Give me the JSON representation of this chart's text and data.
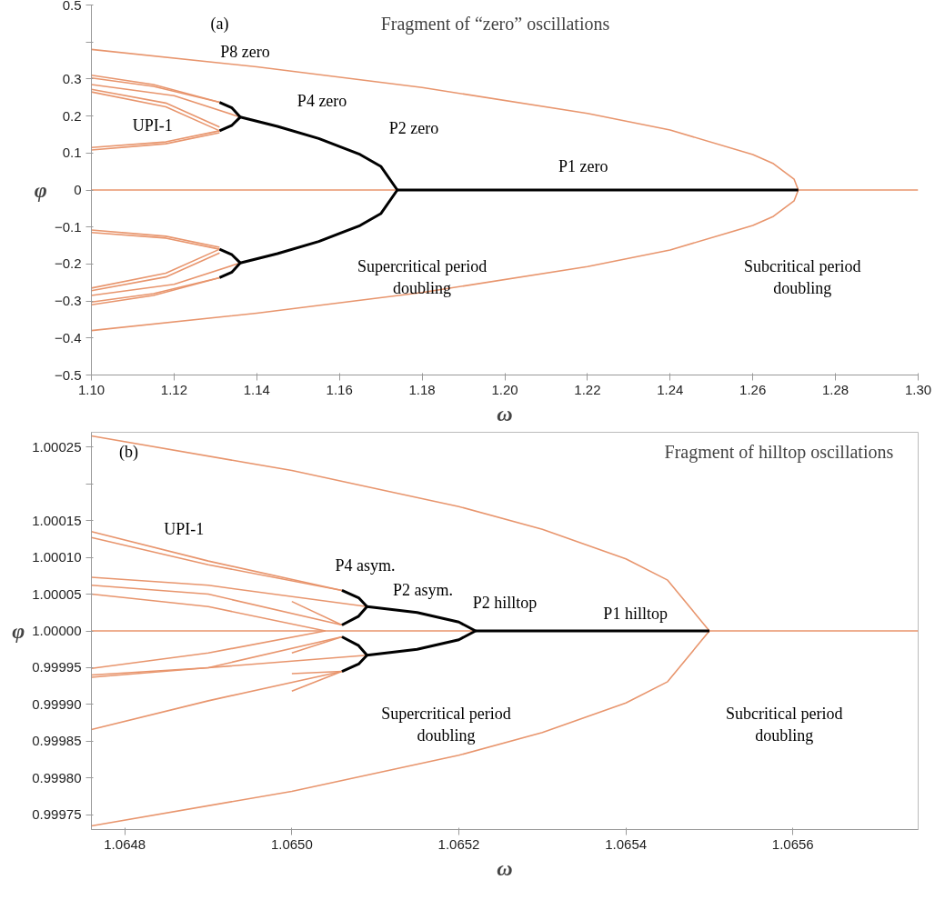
{
  "chart_data": [
    {
      "type": "line",
      "title": "Fragment of “zero” oscillations",
      "xlabel": "ω",
      "ylabel": "φ",
      "xlim": [
        1.1,
        1.3
      ],
      "ylim": [
        -0.5,
        0.5
      ],
      "xticks": [
        {
          "value": 1.1,
          "label": "1.10"
        },
        {
          "value": 1.12,
          "label": "1.12"
        },
        {
          "value": 1.14,
          "label": "1.14"
        },
        {
          "value": 1.16,
          "label": "1.16"
        },
        {
          "value": 1.18,
          "label": "1.18"
        },
        {
          "value": 1.2,
          "label": "1.20"
        },
        {
          "value": 1.22,
          "label": "1.22"
        },
        {
          "value": 1.24,
          "label": "1.24"
        },
        {
          "value": 1.26,
          "label": "1.26"
        },
        {
          "value": 1.28,
          "label": "1.28"
        },
        {
          "value": 1.3,
          "label": "1.30"
        }
      ],
      "yticks": [
        -0.5,
        -0.4,
        -0.3,
        -0.2,
        -0.1,
        0,
        0.1,
        0.2,
        0.3,
        {
          "value": 0.4,
          "label": null
        },
        0.5
      ],
      "annotations": [
        "(a)",
        "P8 zero",
        "P4 zero",
        "P2 zero",
        "P1 zero",
        "UPI-1",
        "Supercritical period doubling",
        "Subcritical period doubling"
      ],
      "series": [
        {
          "type": "line",
          "color": "#e8956d",
          "x": [
            1.1,
            1.3
          ],
          "values": [
            0,
            0
          ]
        },
        {
          "color": "#e8956d",
          "x": [
            1.1,
            1.14,
            1.18,
            1.22,
            1.24,
            1.26,
            1.265,
            1.27,
            1.271,
            1.27,
            1.265,
            1.26,
            1.24,
            1.22,
            1.18,
            1.14,
            1.1
          ],
          "values": [
            0.38,
            0.333,
            0.277,
            0.207,
            0.162,
            0.096,
            0.071,
            0.029,
            0,
            -0.029,
            -0.071,
            -0.096,
            -0.162,
            -0.207,
            -0.277,
            -0.333,
            -0.38
          ]
        },
        {
          "type": "line",
          "color": "#e8956d",
          "x": [
            1.1,
            1.115,
            1.131
          ],
          "values": [
            0.31,
            0.285,
            0.237
          ]
        },
        {
          "type": "line",
          "color": "#e8956d",
          "x": [
            1.1,
            1.115,
            1.131
          ],
          "values": [
            0.303,
            0.28,
            0.237
          ]
        },
        {
          "type": "line",
          "color": "#e8956d",
          "x": [
            1.1,
            1.12,
            1.136
          ],
          "values": [
            0.285,
            0.255,
            0.197
          ]
        },
        {
          "type": "line",
          "color": "#e8956d",
          "x": [
            1.1,
            1.118,
            1.131
          ],
          "values": [
            0.272,
            0.235,
            0.17
          ]
        },
        {
          "type": "line",
          "color": "#e8956d",
          "x": [
            1.1,
            1.118,
            1.131
          ],
          "values": [
            0.265,
            0.225,
            0.16
          ]
        },
        {
          "type": "line",
          "color": "#e8956d",
          "x": [
            1.1,
            1.118,
            1.131
          ],
          "values": [
            0.115,
            0.13,
            0.16
          ]
        },
        {
          "type": "line",
          "color": "#e8956d",
          "x": [
            1.1,
            1.118,
            1.131
          ],
          "values": [
            0.108,
            0.125,
            0.155
          ]
        },
        {
          "type": "line",
          "color": "#e8956d",
          "x": [
            1.1,
            1.115,
            1.131
          ],
          "values": [
            -0.31,
            -0.285,
            -0.237
          ]
        },
        {
          "type": "line",
          "color": "#e8956d",
          "x": [
            1.1,
            1.115,
            1.131
          ],
          "values": [
            -0.303,
            -0.28,
            -0.237
          ]
        },
        {
          "type": "line",
          "color": "#e8956d",
          "x": [
            1.1,
            1.12,
            1.136
          ],
          "values": [
            -0.285,
            -0.255,
            -0.197
          ]
        },
        {
          "type": "line",
          "color": "#e8956d",
          "x": [
            1.1,
            1.118,
            1.131
          ],
          "values": [
            -0.272,
            -0.235,
            -0.17
          ]
        },
        {
          "type": "line",
          "color": "#e8956d",
          "x": [
            1.1,
            1.118,
            1.131
          ],
          "values": [
            -0.265,
            -0.225,
            -0.16
          ]
        },
        {
          "type": "line",
          "color": "#e8956d",
          "x": [
            1.1,
            1.118,
            1.131
          ],
          "values": [
            -0.115,
            -0.13,
            -0.16
          ]
        },
        {
          "type": "line",
          "color": "#e8956d",
          "x": [
            1.1,
            1.118,
            1.131
          ],
          "values": [
            -0.108,
            -0.125,
            -0.155
          ]
        },
        {
          "type": "line",
          "color": "#000000",
          "x": [
            1.174,
            1.271
          ],
          "values": [
            0,
            0
          ]
        },
        {
          "type": "line",
          "color": "#000000",
          "x": [
            1.136,
            1.145,
            1.155,
            1.165,
            1.17,
            1.174,
            1.17,
            1.165,
            1.155,
            1.145,
            1.136
          ],
          "values": [
            0.197,
            0.172,
            0.139,
            0.096,
            0.064,
            0,
            -0.064,
            -0.096,
            -0.139,
            -0.172,
            -0.197
          ]
        },
        {
          "type": "line",
          "color": "#000000",
          "x": [
            1.131,
            1.134,
            1.136,
            1.134,
            1.131
          ],
          "values": [
            0.237,
            0.222,
            0.197,
            0.175,
            0.16
          ]
        },
        {
          "type": "line",
          "color": "#000000",
          "x": [
            1.131,
            1.134,
            1.136,
            1.134,
            1.131
          ],
          "values": [
            -0.237,
            -0.222,
            -0.197,
            -0.175,
            -0.16
          ]
        }
      ]
    },
    {
      "type": "line",
      "title": "Fragment of hilltop oscillations",
      "xlabel": "ω",
      "ylabel": "φ",
      "xlim": [
        1.06476,
        1.06575
      ],
      "ylim": [
        0.99973,
        1.00027
      ],
      "xticks": [
        {
          "value": 1.0648,
          "label": "1.0648"
        },
        {
          "value": 1.065,
          "label": "1.0650"
        },
        {
          "value": 1.0652,
          "label": "1.0652"
        },
        {
          "value": 1.0654,
          "label": "1.0654"
        },
        {
          "value": 1.0656,
          "label": "1.0656"
        }
      ],
      "yticks": [
        {
          "value": 0.99975,
          "label": "0.99975"
        },
        {
          "value": 0.9998,
          "label": "0.99980"
        },
        {
          "value": 0.99985,
          "label": "0.99985"
        },
        {
          "value": 0.9999,
          "label": "0.99990"
        },
        {
          "value": 0.99995,
          "label": "0.99995"
        },
        {
          "value": 1.0,
          "label": "1.00000"
        },
        {
          "value": 1.00005,
          "label": "1.00005"
        },
        {
          "value": 1.0001,
          "label": "1.00010"
        },
        {
          "value": 1.00015,
          "label": "1.00015"
        },
        {
          "value": 1.0002,
          "label": null
        },
        {
          "value": 1.00025,
          "label": "1.00025"
        }
      ],
      "annotations": [
        "(b)",
        "UPI-1",
        "P4 asym.",
        "P2 asym.",
        "P2 hilltop",
        "P1 hilltop",
        "Supercritical period doubling",
        "Subcritical period doubling"
      ],
      "series": [
        {
          "type": "line",
          "color": "#e8956d",
          "x": [
            1.06476,
            1.06575
          ],
          "values": [
            1,
            1
          ]
        },
        {
          "color": "#e8956d",
          "x": [
            1.06476,
            1.065,
            1.0652,
            1.0653,
            1.0654,
            1.06545,
            1.0655,
            1.06545,
            1.0654,
            1.0653,
            1.0652,
            1.065,
            1.06476
          ],
          "values": [
            1.000265,
            1.000218,
            1.000169,
            1.000138,
            1.000098,
            1.000069,
            1,
            0.999931,
            0.999902,
            0.999862,
            0.999831,
            0.999782,
            0.999735
          ]
        },
        {
          "type": "line",
          "color": "#e8956d",
          "x": [
            1.06476,
            1.0649,
            1.06506
          ],
          "values": [
            1.000135,
            1.000095,
            1.000055
          ]
        },
        {
          "type": "line",
          "color": "#e8956d",
          "x": [
            1.06476,
            1.0649,
            1.06506
          ],
          "values": [
            1.000127,
            1.00009,
            1.000055
          ]
        },
        {
          "type": "line",
          "color": "#e8956d",
          "x": [
            1.06476,
            1.0649,
            1.06509
          ],
          "values": [
            1.000073,
            1.000062,
            1.000033
          ]
        },
        {
          "type": "line",
          "color": "#e8956d",
          "x": [
            1.06476,
            1.0649,
            1.06506
          ],
          "values": [
            1.000062,
            1.00005,
            1.000008
          ]
        },
        {
          "type": "line",
          "color": "#e8956d",
          "x": [
            1.06476,
            1.0649,
            1.06504
          ],
          "values": [
            1.00005,
            1.000033,
            1.0
          ]
        },
        {
          "type": "line",
          "color": "#e8956d",
          "x": [
            1.06476,
            1.0649,
            1.06504
          ],
          "values": [
            0.999949,
            0.99997,
            1.0
          ]
        },
        {
          "type": "line",
          "color": "#e8956d",
          "x": [
            1.06476,
            1.0649,
            1.06509
          ],
          "values": [
            0.99994,
            0.99995,
            0.999967
          ]
        },
        {
          "type": "line",
          "color": "#e8956d",
          "x": [
            1.06476,
            1.0649,
            1.06506
          ],
          "values": [
            0.999937,
            0.99995,
            0.999992
          ]
        },
        {
          "type": "line",
          "color": "#e8956d",
          "x": [
            1.06476,
            1.0649,
            1.06506
          ],
          "values": [
            0.999866,
            0.999905,
            0.999945
          ]
        },
        {
          "type": "line",
          "color": "#e8956d",
          "x": [
            1.065,
            1.06506
          ],
          "values": [
            1.00004,
            1.000008
          ]
        },
        {
          "type": "line",
          "color": "#e8956d",
          "x": [
            1.065,
            1.06506
          ],
          "values": [
            0.99997,
            0.999992
          ]
        },
        {
          "type": "line",
          "color": "#e8956d",
          "x": [
            1.065,
            1.06506
          ],
          "values": [
            0.999942,
            0.999945
          ]
        },
        {
          "type": "line",
          "color": "#e8956d",
          "x": [
            1.065,
            1.06506
          ],
          "values": [
            0.999918,
            0.999945
          ]
        },
        {
          "type": "line",
          "color": "#000000",
          "x": [
            1.06522,
            1.0655
          ],
          "values": [
            1,
            1
          ]
        },
        {
          "type": "line",
          "color": "#000000",
          "x": [
            1.06509,
            1.06515,
            1.0652,
            1.06522,
            1.0652,
            1.06515,
            1.06509
          ],
          "values": [
            1.000033,
            1.000025,
            1.000012,
            1,
            0.999988,
            0.999975,
            0.999967
          ]
        },
        {
          "type": "line",
          "color": "#000000",
          "x": [
            1.06506,
            1.06508,
            1.06509,
            1.06508,
            1.06506
          ],
          "values": [
            1.000055,
            1.000045,
            1.000033,
            1.00002,
            1.000008
          ]
        },
        {
          "type": "line",
          "color": "#000000",
          "x": [
            1.06506,
            1.06508,
            1.06509,
            1.06508,
            1.06506
          ],
          "values": [
            0.999992,
            0.99998,
            0.999967,
            0.999955,
            0.999945
          ]
        }
      ]
    }
  ]
}
